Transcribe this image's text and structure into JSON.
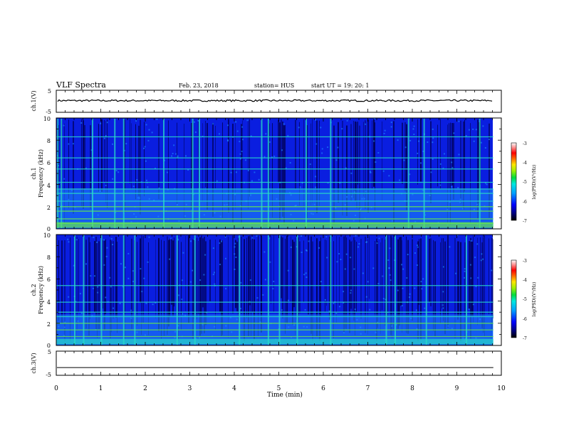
{
  "header": {
    "title": "VLF Spectra",
    "date": "Feb. 23, 2018",
    "station": "station= HUS",
    "start": "start  UT =   19: 20: 1"
  },
  "x_axis": {
    "label": "Time  (min)",
    "ticks": [
      "0",
      "1",
      "2",
      "3",
      "4",
      "5",
      "6",
      "7",
      "8",
      "9",
      "10"
    ]
  },
  "panels": {
    "ch1v": {
      "label": "ch.1(V)",
      "ticks": [
        "5",
        "-5"
      ]
    },
    "ch1": {
      "label_line1": "ch.1",
      "label_line2": "Frequency  (kHz)",
      "ticks": [
        "10",
        "8",
        "6",
        "4",
        "2",
        "0"
      ]
    },
    "ch2": {
      "label_line1": "ch.2",
      "label_line2": "Frequency  (kHz)",
      "ticks": [
        "10",
        "8",
        "6",
        "4",
        "2",
        "0"
      ]
    },
    "ch3v": {
      "label": "ch.3(V)",
      "ticks": [
        "5",
        "-5"
      ]
    }
  },
  "colorbars": [
    {
      "label": "log(PSD)(V²/Hz)",
      "ticks": [
        "-3",
        "-4",
        "-5",
        "-6",
        "-7"
      ]
    },
    {
      "label": "log(PSD)(V²/Hz)",
      "ticks": [
        "-3",
        "-4",
        "-5",
        "-6",
        "-7"
      ]
    }
  ],
  "colors": {
    "deep": "#000050",
    "low": "#0a1ee0",
    "mid": "#1e8cff",
    "cyan": "#28dcc8",
    "green": "#64e650"
  },
  "chart_data": {
    "type": "heatmap",
    "x_unit": "min",
    "xlim": [
      0,
      10
    ],
    "data_end_min": 9.82,
    "ch1_voltage": {
      "ylim": [
        -5,
        5
      ],
      "mean": 0.3
    },
    "ch3_voltage": {
      "ylim": [
        -5,
        5
      ],
      "mean": -1.8
    },
    "ch1_spectrogram": {
      "ylim_khz": [
        0,
        10
      ],
      "zlim_log_psd": [
        -7,
        -3
      ],
      "bright_lines_khz": [
        0.5,
        0.9,
        1.6,
        2.0,
        2.5,
        3.2,
        3.6,
        4.2,
        5.4,
        6.4,
        8.3
      ],
      "bright_times_min": [
        0.02,
        0.1,
        0.8,
        1.3,
        1.5,
        2.4,
        3.05,
        3.2,
        4.6,
        4.75,
        5.6,
        6.15,
        7.9,
        8.25,
        9.5
      ]
    },
    "ch2_spectrogram": {
      "ylim_khz": [
        0,
        10
      ],
      "zlim_log_psd": [
        -7,
        -3
      ],
      "bright_lines_khz": [
        0.8,
        1.4,
        2.0,
        2.6,
        3.0,
        3.9,
        5.4
      ],
      "bright_times_min": [
        0.4,
        0.6,
        1.0,
        1.5,
        1.75,
        2.7,
        3.1,
        4.1,
        4.75,
        5.0,
        5.4,
        6.15,
        7.4,
        7.6,
        8.3,
        9.2
      ]
    }
  }
}
